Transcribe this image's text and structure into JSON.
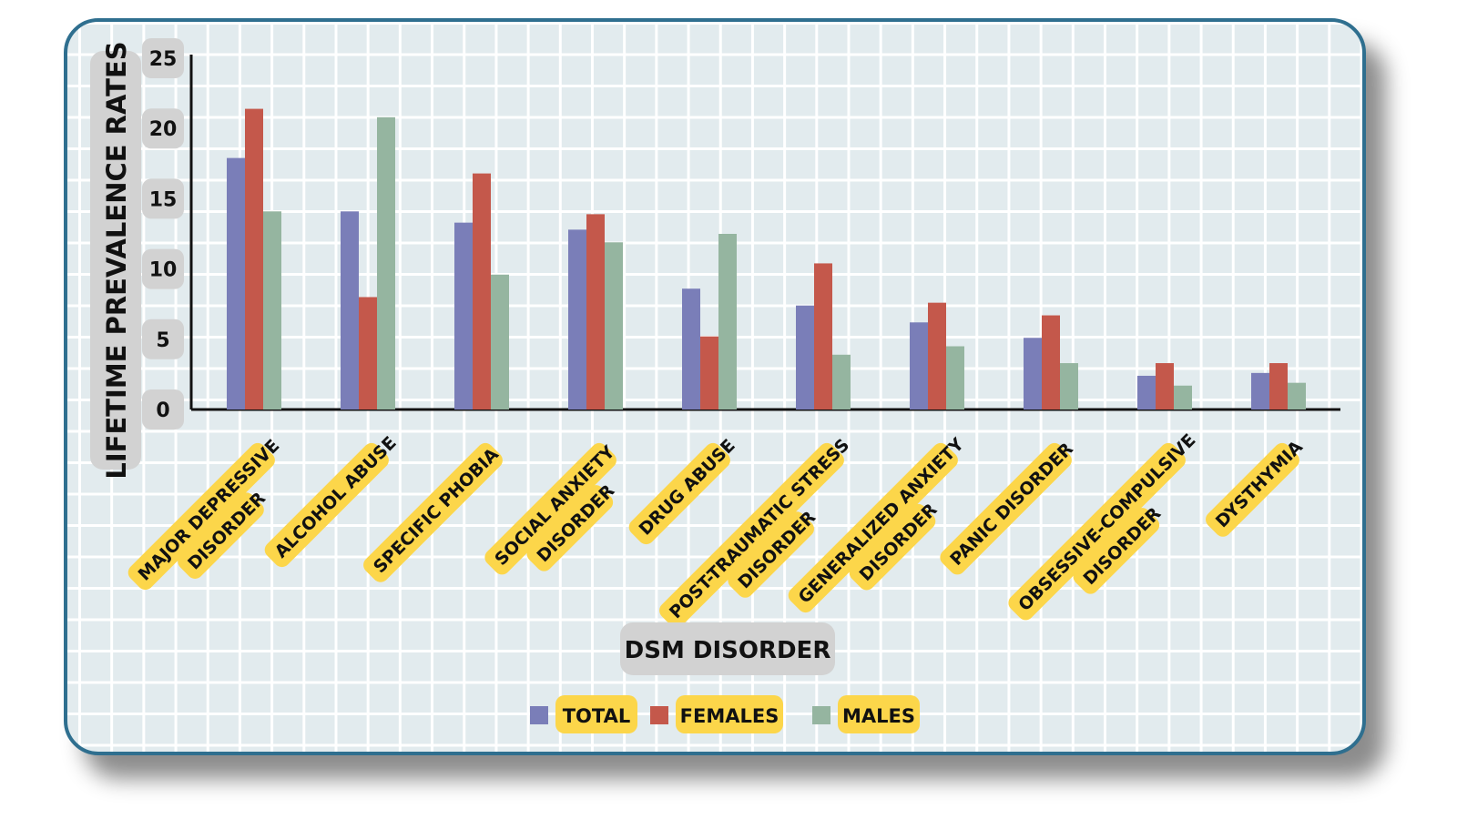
{
  "chart_data": {
    "type": "bar",
    "ylabel": "LIFETIME PREVALENCE RATES",
    "xlabel": "DSM DISORDER",
    "ylim": [
      0,
      25
    ],
    "yticks": [
      0,
      5,
      10,
      15,
      20,
      25
    ],
    "legend_position": "bottom-center",
    "categories": [
      [
        "MAJOR DEPRESSIVE",
        "DISORDER"
      ],
      [
        "ALCOHOL ABUSE"
      ],
      [
        "SPECIFIC PHOBIA"
      ],
      [
        "SOCIAL ANXIETY",
        "DISORDER"
      ],
      [
        "DRUG ABUSE"
      ],
      [
        "POST-TRAUMATIC STRESS",
        "DISORDER"
      ],
      [
        "GENERALIZED ANXIETY",
        "DISORDER"
      ],
      [
        "PANIC DISORDER"
      ],
      [
        "OBSESSIVE-COMPULSIVE",
        "DISORDER"
      ],
      [
        "DYSTHYMIA"
      ]
    ],
    "series": [
      {
        "name": "TOTAL",
        "color": "#7a7eb8",
        "values": [
          17.9,
          14.1,
          13.3,
          12.8,
          8.6,
          7.4,
          6.2,
          5.1,
          2.4,
          2.6
        ]
      },
      {
        "name": "FEMALES",
        "color": "#c4584b",
        "values": [
          21.4,
          8.0,
          16.8,
          13.9,
          5.2,
          10.4,
          7.6,
          6.7,
          3.3,
          3.3
        ]
      },
      {
        "name": "MALES",
        "color": "#95b5a0",
        "values": [
          14.1,
          20.8,
          9.6,
          11.9,
          12.5,
          3.9,
          4.5,
          3.3,
          1.7,
          1.9
        ]
      }
    ]
  }
}
